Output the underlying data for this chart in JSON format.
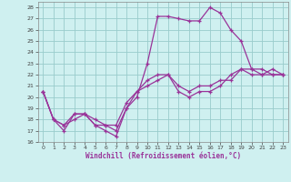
{
  "xlabel": "Windchill (Refroidissement éolien,°C)",
  "bg_color": "#cff0f0",
  "line_color": "#993399",
  "grid_color": "#99cccc",
  "xlim": [
    -0.5,
    23.5
  ],
  "ylim": [
    16,
    28.5
  ],
  "xticks": [
    0,
    1,
    2,
    3,
    4,
    5,
    6,
    7,
    8,
    9,
    10,
    11,
    12,
    13,
    14,
    15,
    16,
    17,
    18,
    19,
    20,
    21,
    22,
    23
  ],
  "yticks": [
    16,
    17,
    18,
    19,
    20,
    21,
    22,
    23,
    24,
    25,
    26,
    27,
    28
  ],
  "lines": [
    {
      "x": [
        0,
        1,
        2,
        3,
        4,
        5,
        6,
        7,
        8,
        9,
        10,
        11,
        12,
        13,
        14,
        15,
        16,
        17,
        18,
        19,
        20,
        21,
        22,
        23
      ],
      "y": [
        20.5,
        18.0,
        17.5,
        18.5,
        18.5,
        18.0,
        17.5,
        17.5,
        19.5,
        20.5,
        21.5,
        22.0,
        22.0,
        21.0,
        20.5,
        21.0,
        21.0,
        21.5,
        21.5,
        22.5,
        22.5,
        22.0,
        22.5,
        22.0
      ]
    },
    {
      "x": [
        0,
        1,
        2,
        3,
        4,
        5,
        6,
        7,
        8,
        9,
        10,
        11,
        12,
        13,
        14,
        15,
        16,
        17,
        18,
        19,
        20,
        21,
        22,
        23
      ],
      "y": [
        20.5,
        18.0,
        17.0,
        18.5,
        18.5,
        17.5,
        17.5,
        17.0,
        19.0,
        20.0,
        23.0,
        27.2,
        27.2,
        27.0,
        26.8,
        26.8,
        28.0,
        27.5,
        26.0,
        25.0,
        22.5,
        22.5,
        22.0,
        22.0
      ]
    },
    {
      "x": [
        0,
        1,
        2,
        3,
        4,
        5,
        6,
        7,
        8,
        9,
        10,
        11,
        12,
        13,
        14,
        15,
        16,
        17,
        18,
        19,
        20,
        21,
        22,
        23
      ],
      "y": [
        20.5,
        18.0,
        17.5,
        18.0,
        18.5,
        17.5,
        17.0,
        16.5,
        19.0,
        20.5,
        21.0,
        21.5,
        22.0,
        20.5,
        20.0,
        20.5,
        20.5,
        21.0,
        22.0,
        22.5,
        22.0,
        22.0,
        22.0,
        22.0
      ]
    }
  ]
}
